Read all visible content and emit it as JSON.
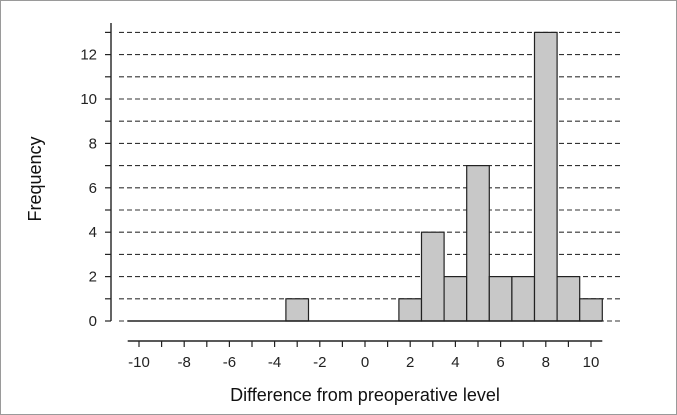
{
  "chart_data": {
    "type": "bar",
    "title": "",
    "xlabel": "Difference from preoperative level",
    "ylabel": "Frequency",
    "xlim": [
      -10.5,
      10.5
    ],
    "ylim": [
      0,
      13
    ],
    "grid": true,
    "x_ticks": [
      -10,
      -8,
      -6,
      -4,
      -2,
      0,
      2,
      4,
      6,
      8,
      10
    ],
    "y_ticks": [
      0,
      2,
      4,
      6,
      8,
      10,
      12
    ],
    "bin_width": 1,
    "bins": [
      {
        "x": -3,
        "value": 1
      },
      {
        "x": 2,
        "value": 1
      },
      {
        "x": 3,
        "value": 4
      },
      {
        "x": 4,
        "value": 2
      },
      {
        "x": 5,
        "value": 7
      },
      {
        "x": 6,
        "value": 2
      },
      {
        "x": 7,
        "value": 2
      },
      {
        "x": 8,
        "value": 13
      },
      {
        "x": 9,
        "value": 2
      },
      {
        "x": 10,
        "value": 1
      }
    ],
    "bar_fill": "#c8c8c8",
    "bar_stroke": "#222222"
  }
}
